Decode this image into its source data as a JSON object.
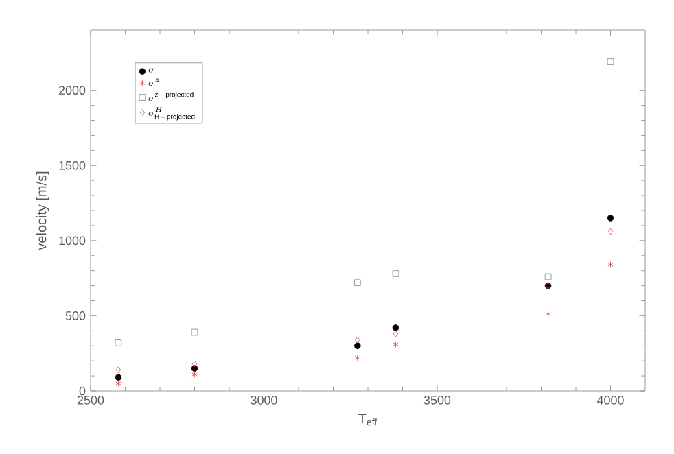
{
  "chart_data": {
    "type": "scatter",
    "xlabel": "T$_{eff}$",
    "ylabel": "velocity [m/s]",
    "x": [
      2580,
      2800,
      3270,
      3380,
      3820,
      4000
    ],
    "series": [
      {
        "name": "\\sigma",
        "color": "#000000",
        "marker": "circle",
        "values": [
          90,
          150,
          300,
          420,
          700,
          1150
        ]
      },
      {
        "name": "\\sigma^{z}",
        "color": "#e03030",
        "marker": "cross",
        "values": [
          50,
          110,
          220,
          310,
          510,
          840
        ]
      },
      {
        "name": "\\sigma^{\\mathrm{z-projected}}",
        "color": "#808080",
        "marker": "square",
        "values": [
          320,
          390,
          720,
          780,
          760,
          2190
        ]
      },
      {
        "name": "\\sigma^{H}_{\\mathrm{H-projected}}",
        "color": "#e04040",
        "marker": "diamond",
        "values": [
          140,
          180,
          340,
          380,
          700,
          1060
        ]
      }
    ],
    "xlim": [
      2500,
      4100
    ],
    "ylim": [
      0,
      2400
    ],
    "xticks": [
      2500,
      3000,
      3500,
      4000
    ],
    "yticks": [
      0,
      500,
      1000,
      1500,
      2000
    ],
    "grid": false,
    "legend": "top left"
  }
}
